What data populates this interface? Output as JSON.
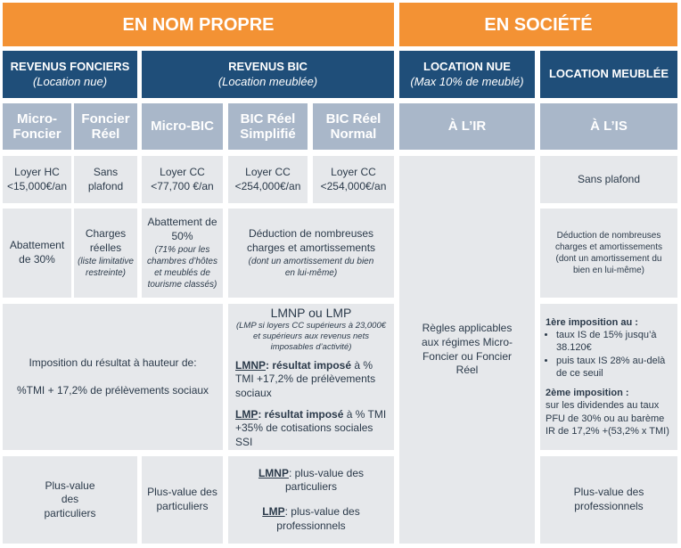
{
  "header": [
    "EN NOM PROPRE",
    "EN SOCIÉTÉ"
  ],
  "groups": [
    {
      "title": "REVENUS FONCIERS",
      "subtitle": "(Location nue)"
    },
    {
      "title": "REVENUS BIC",
      "subtitle": "(Location meublée)"
    },
    {
      "title": "LOCATION NUE",
      "subtitle": "(Max 10% de meublé)"
    },
    {
      "title": "LOCATION MEUBLÉE"
    }
  ],
  "regimes": [
    "Micro-Foncier",
    "Foncier Réel",
    "Micro-BIC",
    "BIC Réel Simplifié",
    "BIC Réel Normal",
    "À L’IR",
    "À L’IS"
  ],
  "plafonds": [
    "Loyer HC <15,000€/an",
    "Sans plafond",
    "Loyer CC <77,700 €/an",
    "Loyer CC <254,000€/an",
    "Loyer CC <254,000€/an",
    "Sans plafond"
  ],
  "charges": [
    {
      "text": "Abattement de 30%"
    },
    {
      "text": "Charges réelles",
      "note": "(liste limitative restreinte)"
    },
    {
      "text": "Abattement de 50%",
      "note": "(71% pour les chambres d’hôtes et meublés de tourisme classés)"
    },
    {
      "text": "Déduction de nombreuses charges et amortissements",
      "note": "(dont un amortissement du bien en lui-même)"
    },
    {
      "text": "Déduction de nombreuses charges et amortissements",
      "note": "(dont un amortissement du bien en lui-même)"
    }
  ],
  "imposition": {
    "nom_propre": [
      "Imposition du résultat à hauteur de:",
      "%TMI + 17,2% de prélèvements sociaux"
    ],
    "bic_reel": {
      "title": "LMNP ou LMP",
      "note": "(LMP si loyers CC supérieurs à 23,000€ et supérieurs aux revenus nets imposables d’activité)",
      "lmnp": {
        "label": "LMNP",
        "bold": ": résultat imposé",
        "text": "à % TMI +17,2% de prélèvements sociaux"
      },
      "lmp": {
        "label": "LMP",
        "bold": ": résultat imposé",
        "text": "à % TMI +35% de cotisations sociales SSI"
      }
    },
    "societe": {
      "first_title": "1ère imposition au :",
      "first_items": [
        "taux IS de 15% jusqu’à 38.120€",
        "puis taux IS 28% au-delà de ce seuil"
      ],
      "second_title": "2ème imposition :",
      "second_text": "sur les dividendes au taux PFU de 30% ou au barème IR de 17,2% +(53,2% x TMI)"
    }
  },
  "ir_rules": "Règles applicables aux régimes Micro-Foncier ou Foncier Réel",
  "plus_values": {
    "foncier": "Plus-value des particuliers",
    "micro_bic": "Plus-value des particuliers",
    "lmnp": {
      "label": "LMNP",
      "text": ": plus-value des particuliers"
    },
    "lmp": {
      "label": "LMP",
      "text": ": plus-value des professionnels"
    },
    "societe": "Plus-value des professionnels"
  }
}
